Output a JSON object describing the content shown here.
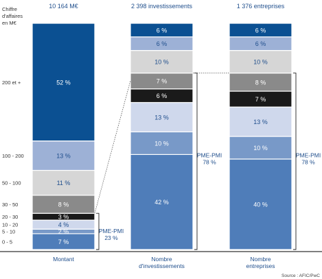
{
  "chart_data": {
    "type": "bar",
    "stacked": true,
    "percent": true,
    "ylabel_lines": [
      "Chiffre",
      "d'affaires",
      "en M€"
    ],
    "bar_headers": [
      "10 164 M€",
      "2 398 investissements",
      "1 376 entreprises"
    ],
    "categories": [
      {
        "name": "Montant",
        "label_lines": [
          "Montant"
        ]
      },
      {
        "name": "Nombre d'investissements",
        "label_lines": [
          "Nombre",
          "d'investissements"
        ]
      },
      {
        "name": "Nombre entreprises",
        "label_lines": [
          "Nombre",
          "entreprises"
        ]
      }
    ],
    "series": [
      {
        "name": "0 - 5",
        "values": [
          7,
          42,
          40
        ],
        "color": "#4f7db9"
      },
      {
        "name": "5 - 10",
        "values": [
          2,
          10,
          10
        ],
        "color": "#7899c8"
      },
      {
        "name": "10 - 20",
        "values": [
          4,
          13,
          13
        ],
        "color": "#cfd8ec"
      },
      {
        "name": "20 - 30",
        "values": [
          3,
          6,
          7
        ],
        "color": "#1a1a1a"
      },
      {
        "name": "30 - 50",
        "values": [
          8,
          7,
          8
        ],
        "color": "#8a8a8a"
      },
      {
        "name": "50 - 100",
        "values": [
          11,
          10,
          10
        ],
        "color": "#d6d6d6"
      },
      {
        "name": "100 - 200",
        "values": [
          13,
          6,
          6
        ],
        "color": "#9db1d6"
      },
      {
        "name": "200 et +",
        "values": [
          52,
          6,
          6
        ],
        "color": "#0b5092"
      }
    ],
    "annotations": [
      {
        "text_lines": [
          "PME-PMI",
          "23 %"
        ],
        "bar": 0
      },
      {
        "text_lines": [
          "PME-PMI",
          "78 %"
        ],
        "bar": 1
      },
      {
        "text_lines": [
          "PME-PMI",
          "78 %"
        ],
        "bar": 2
      }
    ],
    "source": "Source : AFIC/PwC"
  }
}
